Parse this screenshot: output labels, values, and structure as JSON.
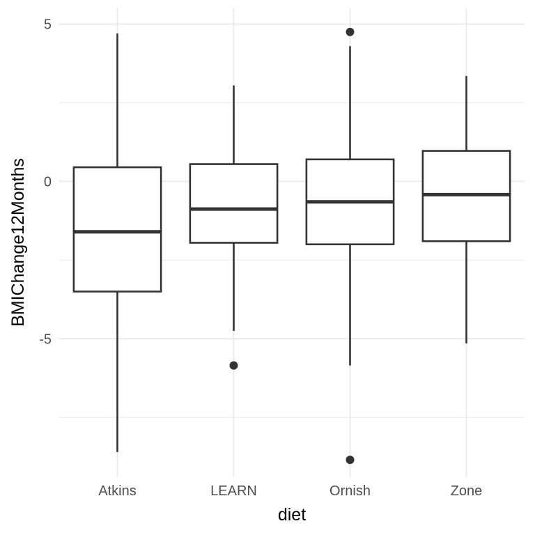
{
  "chart_data": {
    "type": "boxplot",
    "xlabel": "diet",
    "ylabel": "BMIChange12Months",
    "categories": [
      "Atkins",
      "LEARN",
      "Ornish",
      "Zone"
    ],
    "ylim": [
      -9.4,
      5.5
    ],
    "y_ticks": [
      {
        "value": 5,
        "label": "5"
      },
      {
        "value": 0,
        "label": "0"
      },
      {
        "value": -5,
        "label": "-5"
      }
    ],
    "y_minor_ticks": [
      2.5,
      -2.5,
      -7.5
    ],
    "grid": true,
    "boxes": [
      {
        "category": "Atkins",
        "whisker_low": -8.6,
        "q1": -3.5,
        "median": -1.6,
        "q3": 0.45,
        "whisker_high": 4.7,
        "outliers": []
      },
      {
        "category": "LEARN",
        "whisker_low": -4.75,
        "q1": -1.95,
        "median": -0.88,
        "q3": 0.55,
        "whisker_high": 3.05,
        "outliers": [
          -5.85
        ]
      },
      {
        "category": "Ornish",
        "whisker_low": -5.85,
        "q1": -2.0,
        "median": -0.65,
        "q3": 0.7,
        "whisker_high": 4.3,
        "outliers": [
          4.75,
          -8.85
        ]
      },
      {
        "category": "Zone",
        "whisker_low": -5.15,
        "q1": -1.9,
        "median": -0.42,
        "q3": 0.97,
        "whisker_high": 3.35,
        "outliers": []
      }
    ],
    "colors": {
      "box_stroke": "#333333",
      "box_fill": "#ffffff",
      "grid": "#ebebeb",
      "tick_text": "#4d4d4d",
      "axis_title": "#000000"
    }
  }
}
